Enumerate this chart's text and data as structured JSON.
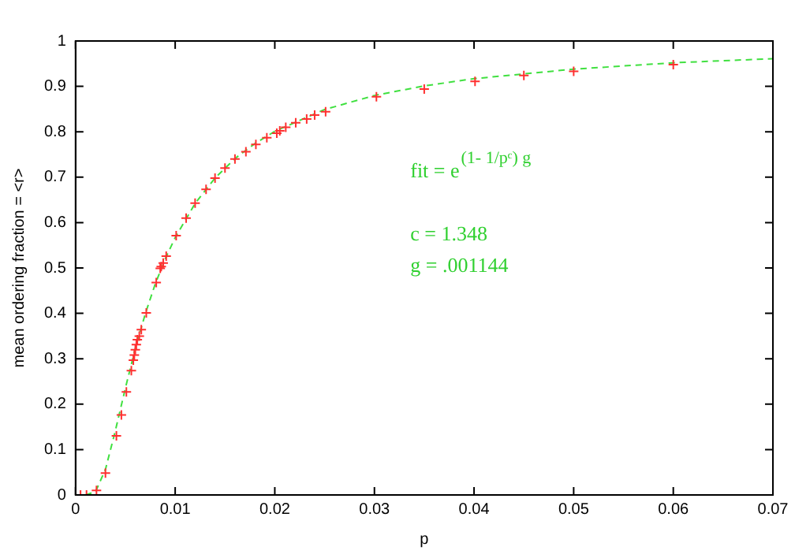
{
  "chart_data": {
    "type": "scatter",
    "xlabel": "p",
    "ylabel": "mean ordering fraction = <r>",
    "xlim": [
      0,
      0.07
    ],
    "xticks": [
      0,
      0.01,
      0.02,
      0.03,
      0.04,
      0.05,
      0.06,
      0.07
    ],
    "ylim": [
      0,
      1
    ],
    "yticks": [
      0,
      0.1,
      0.2,
      0.3,
      0.4,
      0.5,
      0.6,
      0.7,
      0.8,
      0.9,
      1
    ],
    "grid": false,
    "legend": false,
    "marker": "cross",
    "annotations": [
      "fit = e$^{(1- 1/pᶜ) g}$",
      "c = 1.348",
      "g = .001144"
    ],
    "series": [
      {
        "color": "#ff3030",
        "x": [
          0.0005,
          0.0011,
          0.0021,
          0.003,
          0.0041,
          0.0046,
          0.0051,
          0.0056,
          0.0058,
          0.0059,
          0.006,
          0.0061,
          0.0062,
          0.0064,
          0.0066,
          0.0071,
          0.0081,
          0.0085,
          0.0086,
          0.0088,
          0.0091,
          0.0101,
          0.0111,
          0.012,
          0.0131,
          0.014,
          0.015,
          0.016,
          0.0171,
          0.0181,
          0.0192,
          0.0202,
          0.0205,
          0.0211,
          0.0221,
          0.0232,
          0.024,
          0.0251,
          0.0302,
          0.035,
          0.0401,
          0.045,
          0.05,
          0.06
        ],
        "values": [
          0,
          0,
          0.01,
          0.048,
          0.13,
          0.176,
          0.227,
          0.274,
          0.297,
          0.308,
          0.32,
          0.331,
          0.342,
          0.35,
          0.364,
          0.401,
          0.468,
          0.499,
          0.503,
          0.511,
          0.526,
          0.571,
          0.61,
          0.643,
          0.673,
          0.698,
          0.72,
          0.74,
          0.756,
          0.772,
          0.787,
          0.797,
          0.802,
          0.81,
          0.82,
          0.828,
          0.837,
          0.844,
          0.877,
          0.894,
          0.911,
          0.924,
          0.933,
          0.948
        ]
      },
      {
        "type": "line",
        "color": "#40e040",
        "line_style": "dashed",
        "marker": "none",
        "x": [
          0.001,
          0.002,
          0.003,
          0.004,
          0.005,
          0.006,
          0.007,
          0.008,
          0.009,
          0.01,
          0.012,
          0.014,
          0.016,
          0.018,
          0.02,
          0.025,
          0.03,
          0.035,
          0.04,
          0.05,
          0.06,
          0.07
        ],
        "values": [
          0,
          0.007,
          0.056,
          0.142,
          0.235,
          0.323,
          0.399,
          0.465,
          0.52,
          0.567,
          0.642,
          0.698,
          0.741,
          0.774,
          0.801,
          0.849,
          0.88,
          0.901,
          0.917,
          0.938,
          0.952,
          0.961
        ]
      }
    ]
  }
}
